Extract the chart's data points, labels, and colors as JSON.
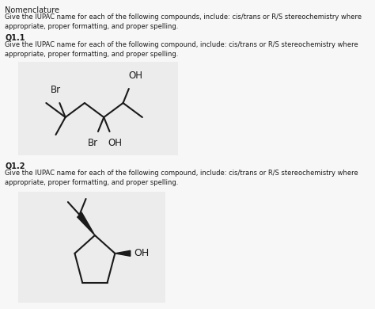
{
  "background_color": "#f7f7f7",
  "title": "Nomenclature",
  "intro_text": "Give the IUPAC name for each of the following compounds, include: cis/trans or R/S stereochemistry where\nappropriate, proper formatting, and proper spelling.",
  "q1_label": "Q1.1",
  "q1_text": "Give the IUPAC name for each of the following compound, include: cis/trans or R/S stereochemistry where\nappropriate, proper formatting, and proper spelling.",
  "q2_label": "Q1.2",
  "q2_text": "Give the IUPAC name for each of the following compound, include: cis/trans or R/S stereochemistry where\nappropriate, proper formatting, and proper spelling.",
  "text_color": "#1a1a1a",
  "box_facecolor": "#ececec",
  "line_color": "#1a1a1a",
  "title_fontsize": 7.0,
  "body_fontsize": 6.0,
  "label_fontsize": 7.0,
  "chem_fontsize": 8.5
}
